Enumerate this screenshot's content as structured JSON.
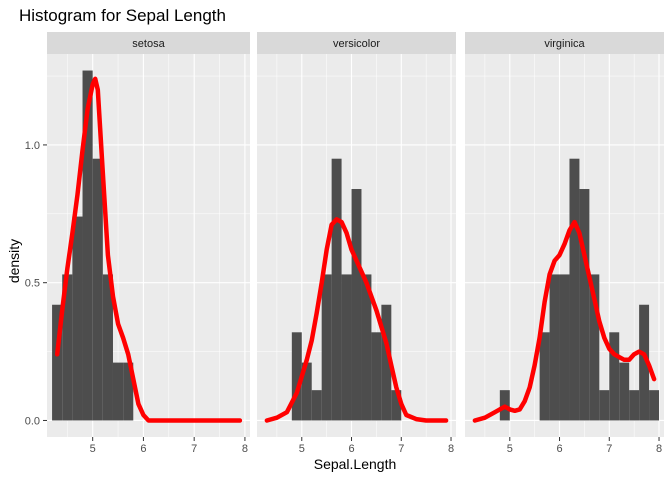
{
  "chart_data": {
    "type": "bar",
    "title": "Histogram for Sepal Length",
    "xlabel": "Sepal.Length",
    "ylabel": "density",
    "xlim": [
      4.1,
      8.1
    ],
    "ylim": [
      -0.06,
      1.33
    ],
    "x_ticks": [
      "5",
      "6",
      "7",
      "8"
    ],
    "x_tick_values": [
      5,
      6,
      7,
      8
    ],
    "y_ticks": [
      "0.0",
      "0.5",
      "1.0"
    ],
    "y_tick_values": [
      0,
      0.5,
      1.0
    ],
    "bin_width": 0.2,
    "colors": {
      "panel_background": "#ebebeb",
      "grid": "#ffffff",
      "strip_background": "#d9d9d9",
      "bar_fill": "#4d4d4d",
      "density_line": "#ff0000"
    },
    "facets": [
      {
        "label": "setosa",
        "bins": [
          {
            "x": 4.3,
            "density": 0.42
          },
          {
            "x": 4.5,
            "density": 0.53
          },
          {
            "x": 4.7,
            "density": 0.74
          },
          {
            "x": 4.9,
            "density": 1.27
          },
          {
            "x": 5.1,
            "density": 0.95
          },
          {
            "x": 5.3,
            "density": 0.53
          },
          {
            "x": 5.5,
            "density": 0.21
          },
          {
            "x": 5.7,
            "density": 0.21
          },
          {
            "x": 5.9,
            "density": 0.0
          }
        ],
        "density_curve": {
          "x": [
            4.3,
            4.4,
            4.5,
            4.6,
            4.7,
            4.8,
            4.9,
            5.0,
            5.05,
            5.1,
            5.2,
            5.3,
            5.4,
            5.5,
            5.6,
            5.7,
            5.8,
            5.9,
            6.0,
            6.1,
            6.2,
            6.5,
            7.0,
            7.5,
            7.9
          ],
          "y": [
            0.24,
            0.4,
            0.55,
            0.68,
            0.82,
            0.98,
            1.13,
            1.22,
            1.24,
            1.2,
            0.9,
            0.6,
            0.45,
            0.35,
            0.3,
            0.24,
            0.15,
            0.06,
            0.02,
            0.0,
            0.0,
            0.0,
            0.0,
            0.0,
            0.0
          ]
        }
      },
      {
        "label": "versicolor",
        "bins": [
          {
            "x": 4.9,
            "density": 0.32
          },
          {
            "x": 5.1,
            "density": 0.21
          },
          {
            "x": 5.3,
            "density": 0.11
          },
          {
            "x": 5.5,
            "density": 0.53
          },
          {
            "x": 5.7,
            "density": 0.95
          },
          {
            "x": 5.9,
            "density": 0.53
          },
          {
            "x": 6.1,
            "density": 0.84
          },
          {
            "x": 6.3,
            "density": 0.53
          },
          {
            "x": 6.5,
            "density": 0.32
          },
          {
            "x": 6.7,
            "density": 0.42
          },
          {
            "x": 6.9,
            "density": 0.11
          }
        ],
        "density_curve": {
          "x": [
            4.3,
            4.5,
            4.7,
            4.9,
            5.0,
            5.1,
            5.2,
            5.3,
            5.4,
            5.5,
            5.6,
            5.7,
            5.8,
            5.9,
            6.0,
            6.1,
            6.2,
            6.3,
            6.4,
            6.5,
            6.6,
            6.7,
            6.8,
            6.9,
            7.0,
            7.1,
            7.3,
            7.5,
            7.7,
            7.9
          ],
          "y": [
            0.0,
            0.01,
            0.03,
            0.1,
            0.16,
            0.22,
            0.29,
            0.39,
            0.5,
            0.62,
            0.71,
            0.73,
            0.72,
            0.68,
            0.62,
            0.58,
            0.54,
            0.5,
            0.45,
            0.4,
            0.34,
            0.28,
            0.2,
            0.12,
            0.06,
            0.02,
            0.005,
            0.0,
            0.0,
            0.0
          ]
        }
      },
      {
        "label": "virginica",
        "bins": [
          {
            "x": 4.9,
            "density": 0.11
          },
          {
            "x": 5.7,
            "density": 0.32
          },
          {
            "x": 5.9,
            "density": 0.53
          },
          {
            "x": 6.1,
            "density": 0.53
          },
          {
            "x": 6.3,
            "density": 0.95
          },
          {
            "x": 6.5,
            "density": 0.84
          },
          {
            "x": 6.7,
            "density": 0.53
          },
          {
            "x": 6.9,
            "density": 0.11
          },
          {
            "x": 7.1,
            "density": 0.32
          },
          {
            "x": 7.3,
            "density": 0.21
          },
          {
            "x": 7.5,
            "density": 0.11
          },
          {
            "x": 7.7,
            "density": 0.42
          },
          {
            "x": 7.9,
            "density": 0.11
          }
        ],
        "density_curve": {
          "x": [
            4.3,
            4.5,
            4.7,
            4.8,
            4.9,
            5.0,
            5.1,
            5.2,
            5.3,
            5.4,
            5.5,
            5.6,
            5.7,
            5.8,
            5.9,
            6.0,
            6.1,
            6.2,
            6.3,
            6.4,
            6.5,
            6.6,
            6.7,
            6.8,
            6.9,
            7.0,
            7.1,
            7.2,
            7.3,
            7.4,
            7.5,
            7.6,
            7.7,
            7.8,
            7.9
          ],
          "y": [
            0.0,
            0.01,
            0.03,
            0.04,
            0.05,
            0.04,
            0.035,
            0.04,
            0.07,
            0.12,
            0.2,
            0.3,
            0.43,
            0.53,
            0.58,
            0.6,
            0.64,
            0.69,
            0.72,
            0.68,
            0.6,
            0.52,
            0.44,
            0.36,
            0.3,
            0.26,
            0.24,
            0.23,
            0.22,
            0.22,
            0.24,
            0.25,
            0.24,
            0.2,
            0.15
          ]
        }
      }
    ]
  }
}
